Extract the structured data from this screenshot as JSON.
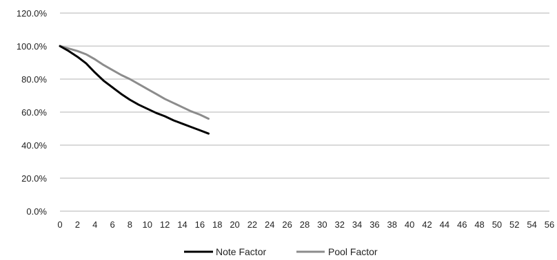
{
  "chart_data": {
    "type": "line",
    "title": "",
    "xlabel": "",
    "ylabel": "",
    "xlim": [
      0,
      56
    ],
    "ylim": [
      0,
      120
    ],
    "x_ticks": [
      "0",
      "2",
      "4",
      "6",
      "8",
      "10",
      "12",
      "14",
      "16",
      "18",
      "20",
      "22",
      "24",
      "26",
      "28",
      "30",
      "32",
      "34",
      "36",
      "38",
      "40",
      "42",
      "44",
      "46",
      "48",
      "50",
      "52",
      "54",
      "56"
    ],
    "y_ticks": [
      "0.0%",
      "20.0%",
      "40.0%",
      "60.0%",
      "80.0%",
      "100.0%",
      "120.0%"
    ],
    "y_tick_values": [
      0,
      20,
      40,
      60,
      80,
      100,
      120
    ],
    "grid": true,
    "legend_position": "bottom",
    "series": [
      {
        "name": "Note Factor",
        "color": "#000000",
        "x": [
          0,
          1,
          2,
          3,
          4,
          5,
          6,
          7,
          8,
          9,
          10,
          11,
          12,
          13,
          14,
          15,
          16,
          17
        ],
        "y": [
          100,
          97,
          93.5,
          89.5,
          84,
          79,
          75,
          71,
          67.5,
          64.5,
          62,
          59.5,
          57.5,
          55,
          53,
          51,
          49,
          47
        ]
      },
      {
        "name": "Pool Factor",
        "color": "#8c8c8c",
        "x": [
          0,
          1,
          2,
          3,
          4,
          5,
          6,
          7,
          8,
          9,
          10,
          11,
          12,
          13,
          14,
          15,
          16,
          17
        ],
        "y": [
          100,
          98.5,
          97,
          95,
          92,
          88.5,
          85.5,
          82.5,
          80,
          77,
          74,
          71,
          68,
          65.5,
          63,
          60.5,
          58.5,
          56
        ]
      }
    ]
  }
}
